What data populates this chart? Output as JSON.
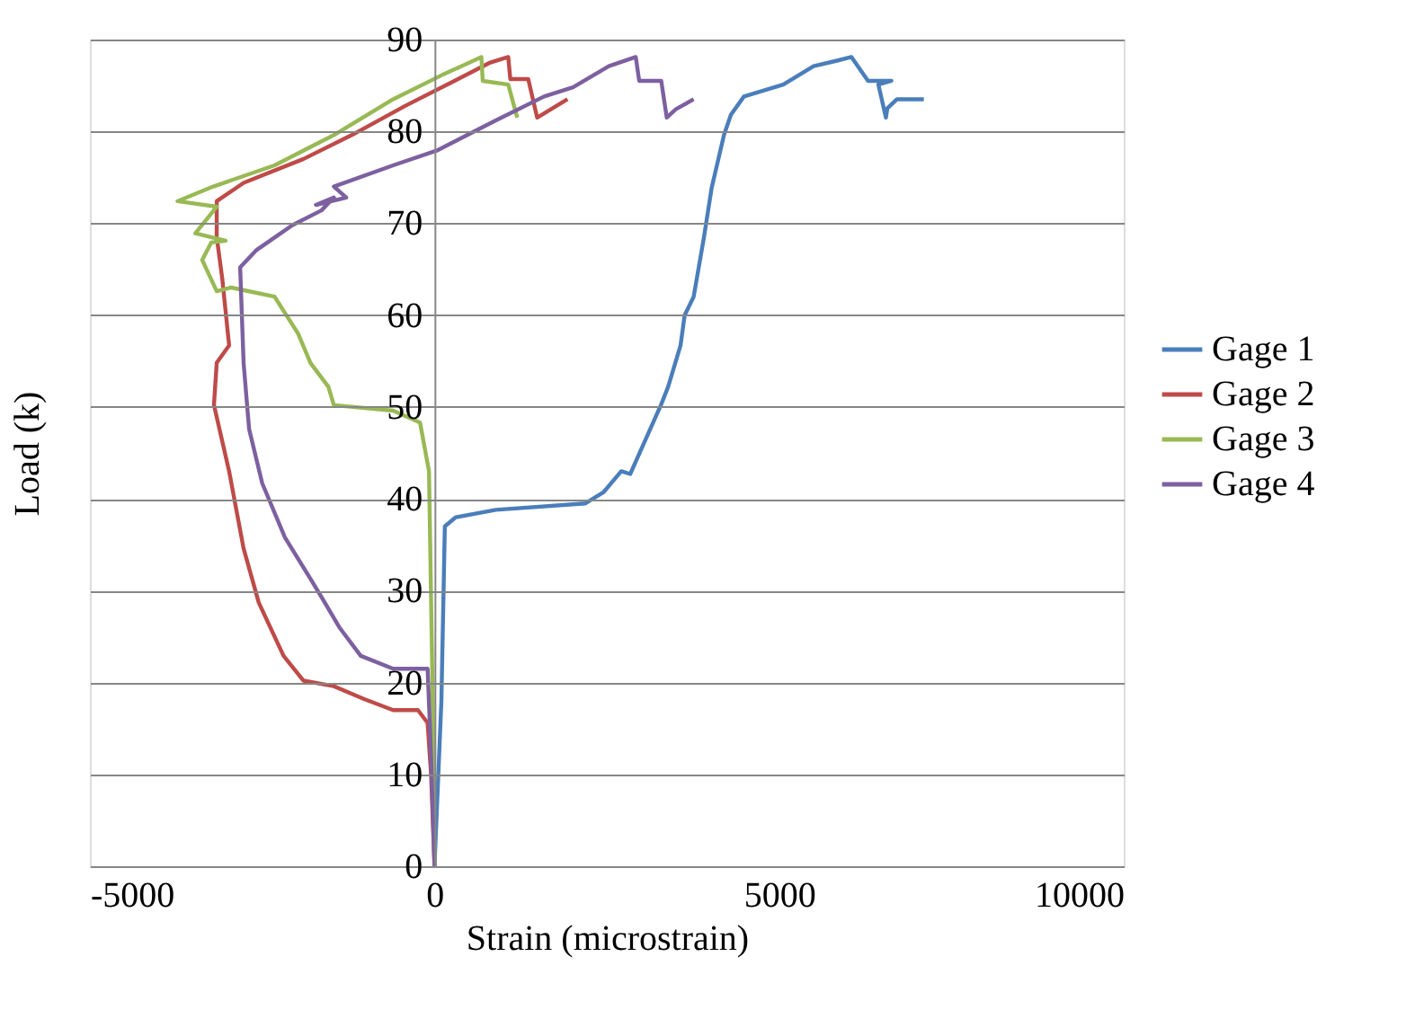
{
  "chart_data": {
    "type": "line",
    "xlabel": "Strain (microstrain)",
    "ylabel": "Load (k)",
    "xlim": [
      -5000,
      10000
    ],
    "xticks": [
      -5000,
      0,
      5000,
      10000
    ],
    "ylim": [
      0,
      90
    ],
    "yticks": [
      0,
      10,
      20,
      30,
      40,
      50,
      60,
      70,
      80,
      90
    ],
    "grid": "y",
    "legend": "right",
    "marker": "none",
    "line_style": "solid",
    "series": [
      {
        "name": "Gage 1",
        "color": "#4a7ebb",
        "x": [
          0,
          100,
          150,
          310,
          890,
          2190,
          2450,
          2710,
          2840,
          3290,
          3390,
          3570,
          3630,
          3760,
          3910,
          4020,
          4200,
          4300,
          4490,
          5060,
          5500,
          5840,
          6050,
          6290,
          6630,
          6440,
          6550,
          6570,
          6710,
          7100
        ],
        "values": [
          0,
          18,
          37,
          38,
          38.8,
          39.5,
          40.7,
          43,
          42.7,
          50.3,
          52.2,
          56.7,
          60,
          62,
          68.5,
          73.8,
          79.6,
          81.8,
          83.8,
          85.1,
          87.1,
          87.7,
          88.1,
          85.5,
          85.5,
          85.1,
          81.5,
          82.5,
          83.5,
          83.5
        ]
      },
      {
        "name": "Gage 2",
        "color": "#be4b48",
        "x": [
          0,
          -50,
          -100,
          -240,
          -600,
          -1020,
          -1460,
          -1900,
          -2190,
          -2550,
          -2770,
          -2980,
          -3200,
          -3160,
          -2980,
          -3080,
          -3160,
          -3160,
          -2770,
          -1900,
          -1200,
          -420,
          290,
          810,
          1070,
          1100,
          1360,
          1490,
          1930
        ],
        "values": [
          0,
          10,
          15.6,
          17,
          17,
          18.2,
          19.6,
          20.2,
          22.9,
          28.7,
          34.6,
          43,
          50.2,
          54.8,
          56.7,
          64,
          68.5,
          72.4,
          74.4,
          77,
          79.6,
          82.8,
          85.5,
          87.5,
          88.1,
          85.7,
          85.7,
          81.5,
          83.5
        ]
      },
      {
        "name": "Gage 3",
        "color": "#98b954",
        "x": [
          0,
          -30,
          -80,
          -210,
          -600,
          -1460,
          -1540,
          -1800,
          -1980,
          -2320,
          -2950,
          -3160,
          -3370,
          -3240,
          -3030,
          -3470,
          -3160,
          -3730,
          -3210,
          -2320,
          -1460,
          -600,
          100,
          680,
          700,
          1070,
          1200
        ],
        "values": [
          0,
          20,
          43,
          48.3,
          49.6,
          50.2,
          52.2,
          54.8,
          58,
          62,
          63,
          62.6,
          66,
          67.9,
          68.1,
          68.9,
          71.8,
          72.4,
          74,
          76.3,
          79.6,
          83.5,
          86.1,
          88.1,
          85.5,
          85.1,
          81.5
        ]
      },
      {
        "name": "Gage 4",
        "color": "#7d60a0",
        "x": [
          0,
          -50,
          -100,
          -600,
          -1070,
          -1380,
          -1640,
          -1800,
          -2170,
          -2500,
          -2690,
          -2770,
          -2820,
          -2580,
          -2060,
          -1640,
          -1460,
          -1720,
          -1280,
          -1460,
          -600,
          30,
          890,
          1590,
          2010,
          2530,
          2920,
          2970,
          3290,
          3370,
          3500,
          3760
        ],
        "values": [
          0,
          12,
          21.5,
          21.5,
          22.9,
          26,
          29.3,
          31.3,
          35.8,
          41.7,
          47.6,
          54.8,
          65.2,
          67.1,
          69.8,
          71.4,
          72.8,
          72,
          72.8,
          74,
          76.3,
          77.9,
          81.2,
          83.8,
          84.8,
          87.1,
          88.1,
          85.5,
          85.5,
          81.5,
          82.4,
          83.5
        ]
      }
    ]
  }
}
